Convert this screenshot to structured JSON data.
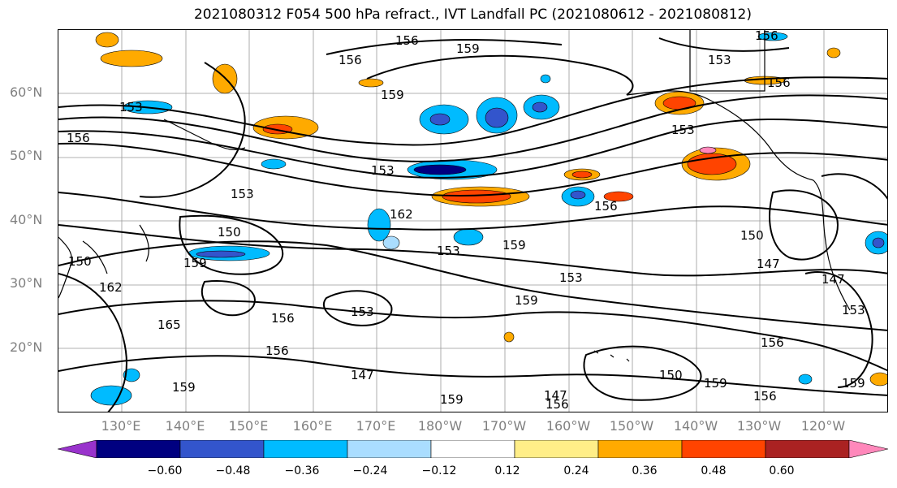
{
  "title": "2021080312 F054 500 hPa refract., IVT Landfall PC (2021080612 - 2021080812)",
  "lat_labels": [
    "60°N",
    "50°N",
    "40°N",
    "30°N",
    "20°N"
  ],
  "lon_labels": [
    "130°E",
    "140°E",
    "150°E",
    "160°E",
    "170°E",
    "180°W",
    "170°W",
    "160°W",
    "150°W",
    "140°W",
    "130°W",
    "120°W"
  ],
  "contour_labels": [
    "156",
    "159",
    "156",
    "153",
    "156",
    "153",
    "156",
    "156",
    "159",
    "153",
    "153",
    "162",
    "153",
    "156",
    "159",
    "153",
    "150",
    "159",
    "150",
    "147",
    "150",
    "162",
    "165",
    "153",
    "156",
    "147",
    "156",
    "159",
    "159",
    "147",
    "159",
    "156",
    "153",
    "150",
    "156",
    "147",
    "153",
    "159",
    "156",
    "159"
  ],
  "colorbar": {
    "colors": [
      "#9933cc",
      "#000080",
      "#3355cc",
      "#00bbff",
      "#aaddff",
      "#ffffff",
      "#ffee88",
      "#ffaa00",
      "#ff4400",
      "#aa2222",
      "#ff88bb"
    ],
    "tick_labels": [
      "−0.60",
      "−0.48",
      "−0.36",
      "−0.24",
      "−0.12",
      "0.12",
      "0.24",
      "0.36",
      "0.48",
      "0.60"
    ]
  }
}
